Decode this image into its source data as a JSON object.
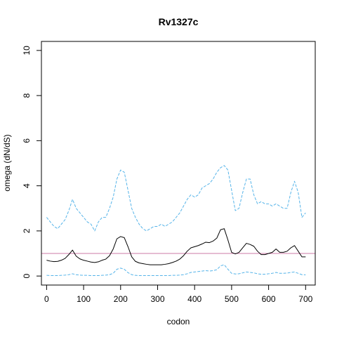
{
  "chart_data": {
    "type": "line",
    "title": "Rv1327c",
    "xlabel": "codon",
    "ylabel": "omega (dN/dS)",
    "xlim": [
      -14,
      726
    ],
    "ylim": [
      -0.4,
      10.4
    ],
    "xticks": [
      0,
      100,
      200,
      300,
      400,
      500,
      600,
      700
    ],
    "yticks": [
      0,
      2,
      4,
      6,
      8,
      10
    ],
    "grid": false,
    "legend": "none",
    "reference_line": {
      "y": 1,
      "color": "#cc79a7"
    },
    "series": [
      {
        "role": "upper",
        "style": "dashed",
        "color": "#56b4e9",
        "x": [
          0,
          10,
          20,
          30,
          40,
          50,
          60,
          70,
          80,
          90,
          100,
          110,
          120,
          130,
          140,
          150,
          160,
          170,
          180,
          190,
          200,
          210,
          220,
          230,
          240,
          250,
          260,
          270,
          280,
          290,
          300,
          310,
          320,
          330,
          340,
          350,
          360,
          370,
          380,
          390,
          400,
          410,
          420,
          430,
          440,
          450,
          460,
          470,
          480,
          490,
          500,
          510,
          520,
          530,
          540,
          550,
          560,
          570,
          580,
          590,
          600,
          610,
          620,
          630,
          640,
          650,
          660,
          670,
          680,
          690,
          700
        ],
        "y": [
          2.6,
          2.4,
          2.2,
          2.1,
          2.3,
          2.5,
          2.9,
          3.4,
          3.0,
          2.8,
          2.6,
          2.4,
          2.3,
          2.0,
          2.4,
          2.6,
          2.6,
          3.0,
          3.5,
          4.3,
          4.7,
          4.6,
          3.8,
          3.0,
          2.6,
          2.3,
          2.1,
          2.0,
          2.1,
          2.2,
          2.2,
          2.3,
          2.2,
          2.3,
          2.4,
          2.6,
          2.8,
          3.1,
          3.4,
          3.6,
          3.5,
          3.6,
          3.9,
          4.0,
          4.1,
          4.3,
          4.6,
          4.8,
          4.9,
          4.7,
          3.8,
          2.9,
          3.0,
          3.7,
          4.3,
          4.3,
          3.6,
          3.2,
          3.3,
          3.2,
          3.2,
          3.1,
          3.2,
          3.1,
          3.0,
          3.0,
          3.7,
          4.2,
          3.7,
          2.6,
          2.8
        ]
      },
      {
        "role": "estimate",
        "style": "solid",
        "color": "#000000",
        "x": [
          0,
          10,
          20,
          30,
          40,
          50,
          60,
          70,
          80,
          90,
          100,
          110,
          120,
          130,
          140,
          150,
          160,
          170,
          180,
          190,
          200,
          210,
          220,
          230,
          240,
          250,
          260,
          270,
          280,
          290,
          300,
          310,
          320,
          330,
          340,
          350,
          360,
          370,
          380,
          390,
          400,
          410,
          420,
          430,
          440,
          450,
          460,
          470,
          480,
          490,
          500,
          510,
          520,
          530,
          540,
          550,
          560,
          570,
          580,
          590,
          600,
          610,
          620,
          630,
          640,
          650,
          660,
          670,
          680,
          690,
          700
        ],
        "y": [
          0.7,
          0.66,
          0.64,
          0.65,
          0.7,
          0.78,
          0.95,
          1.15,
          0.88,
          0.76,
          0.7,
          0.66,
          0.62,
          0.6,
          0.63,
          0.7,
          0.75,
          0.9,
          1.2,
          1.65,
          1.75,
          1.7,
          1.3,
          0.85,
          0.65,
          0.58,
          0.55,
          0.52,
          0.5,
          0.5,
          0.5,
          0.5,
          0.52,
          0.55,
          0.6,
          0.66,
          0.75,
          0.9,
          1.1,
          1.25,
          1.3,
          1.35,
          1.42,
          1.5,
          1.48,
          1.55,
          1.68,
          2.05,
          2.1,
          1.6,
          1.05,
          0.98,
          1.05,
          1.25,
          1.45,
          1.4,
          1.32,
          1.1,
          0.95,
          0.95,
          1.0,
          1.05,
          1.2,
          1.05,
          1.05,
          1.1,
          1.25,
          1.35,
          1.1,
          0.85,
          0.85
        ]
      },
      {
        "role": "lower",
        "style": "dashed",
        "color": "#56b4e9",
        "x": [
          0,
          10,
          20,
          30,
          40,
          50,
          60,
          70,
          80,
          90,
          100,
          110,
          120,
          130,
          140,
          150,
          160,
          170,
          180,
          190,
          200,
          210,
          220,
          230,
          240,
          250,
          260,
          270,
          280,
          290,
          300,
          310,
          320,
          330,
          340,
          350,
          360,
          370,
          380,
          390,
          400,
          410,
          420,
          430,
          440,
          450,
          460,
          470,
          480,
          490,
          500,
          510,
          520,
          530,
          540,
          550,
          560,
          570,
          580,
          590,
          600,
          610,
          620,
          630,
          640,
          650,
          660,
          670,
          680,
          690,
          700
        ],
        "y": [
          0.03,
          0.02,
          0.02,
          0.02,
          0.03,
          0.04,
          0.06,
          0.1,
          0.06,
          0.04,
          0.03,
          0.03,
          0.02,
          0.02,
          0.02,
          0.03,
          0.04,
          0.06,
          0.12,
          0.3,
          0.35,
          0.3,
          0.15,
          0.06,
          0.03,
          0.02,
          0.02,
          0.02,
          0.02,
          0.02,
          0.02,
          0.02,
          0.02,
          0.02,
          0.03,
          0.03,
          0.04,
          0.06,
          0.1,
          0.16,
          0.18,
          0.2,
          0.22,
          0.24,
          0.22,
          0.24,
          0.28,
          0.45,
          0.5,
          0.3,
          0.12,
          0.09,
          0.1,
          0.14,
          0.18,
          0.16,
          0.14,
          0.1,
          0.08,
          0.08,
          0.1,
          0.12,
          0.16,
          0.12,
          0.12,
          0.13,
          0.16,
          0.18,
          0.12,
          0.06,
          0.05
        ]
      }
    ]
  }
}
